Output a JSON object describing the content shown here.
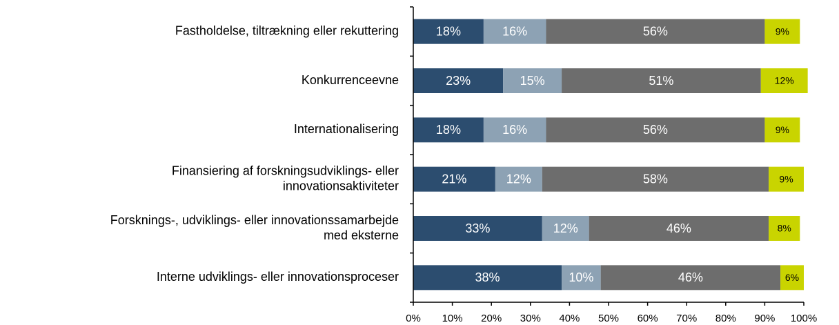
{
  "chart_data": {
    "type": "stacked-barh",
    "categories": [
      "Fastholdelse, tiltrækning eller rekuttering",
      "Konkurrenceevne",
      "Internationalisering",
      "Finansiering af forskningsudviklings- eller\ninnovationsaktiviteter",
      "Forsknings-, udviklings- eller innovationssamarbejde\nmed eksterne",
      "Interne udviklings- eller innovationsproceser"
    ],
    "series": [
      {
        "color": "#2c4d6f",
        "values": [
          18,
          23,
          18,
          21,
          33,
          38
        ],
        "value_labels": [
          "18%",
          "23%",
          "18%",
          "21%",
          "33%",
          "38%"
        ]
      },
      {
        "color": "#8da2b4",
        "values": [
          16,
          15,
          16,
          12,
          12,
          10
        ],
        "value_labels": [
          "16%",
          "15%",
          "16%",
          "12%",
          "12%",
          "10%"
        ]
      },
      {
        "color": "#6d6d6d",
        "values": [
          56,
          51,
          56,
          58,
          46,
          46
        ],
        "value_labels": [
          "56%",
          "51%",
          "56%",
          "58%",
          "46%",
          "46%"
        ]
      },
      {
        "color": "#c9d400",
        "values": [
          9,
          12,
          9,
          9,
          8,
          6
        ],
        "value_labels": [
          "9%",
          "12%",
          "9%",
          "9%",
          "8%",
          "6%"
        ]
      }
    ],
    "xlim": [
      0,
      100
    ],
    "xticks": [
      {
        "value": 0,
        "label": "0%"
      },
      {
        "value": 10,
        "label": "10%"
      },
      {
        "value": 20,
        "label": "20%"
      },
      {
        "value": 30,
        "label": "30%"
      },
      {
        "value": 40,
        "label": "40%"
      },
      {
        "value": 50,
        "label": "50%"
      },
      {
        "value": 60,
        "label": "60%"
      },
      {
        "value": 70,
        "label": "70%"
      },
      {
        "value": 80,
        "label": "80%"
      },
      {
        "value": 90,
        "label": "90%"
      },
      {
        "value": 100,
        "label": "100%"
      }
    ]
  }
}
